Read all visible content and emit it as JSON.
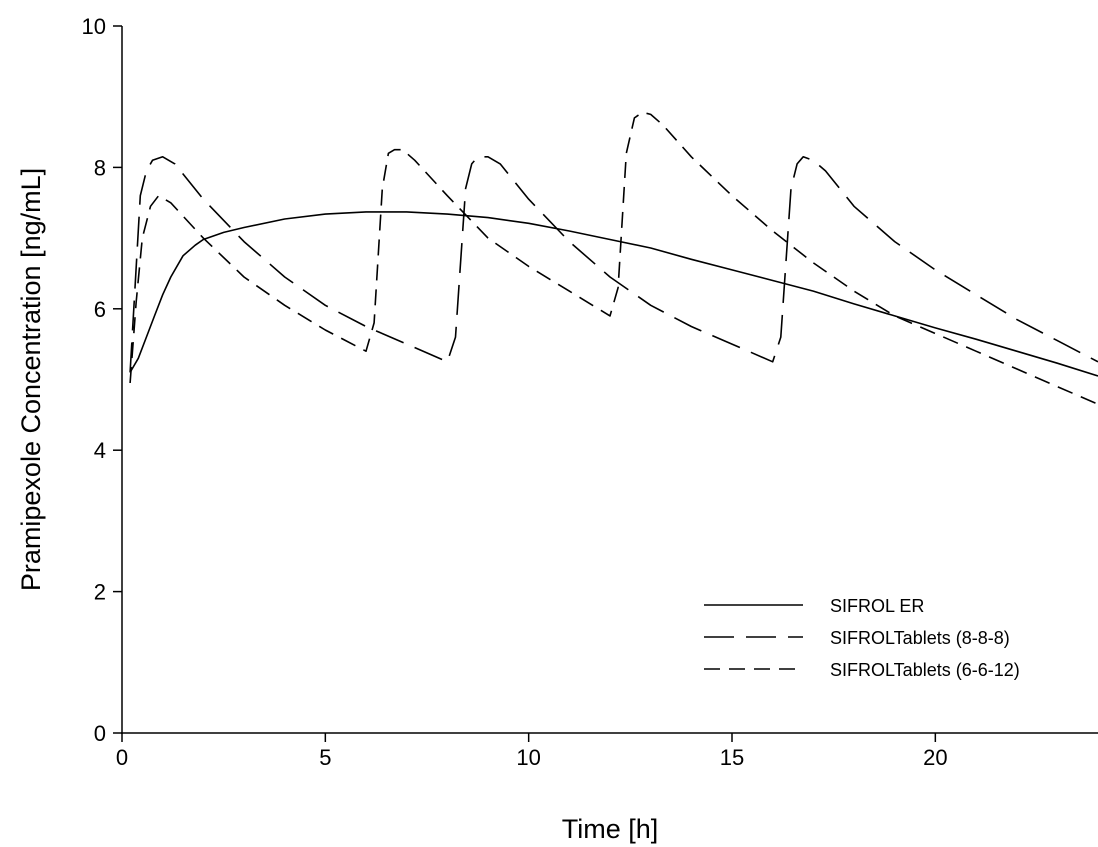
{
  "chart_data": {
    "type": "line",
    "title": "",
    "xlabel": "Time [h]",
    "ylabel": "Pramipexole Concentration [ng/mL]",
    "xlim": [
      0,
      24
    ],
    "ylim": [
      0,
      10
    ],
    "xticks": [
      0,
      5,
      10,
      15,
      20
    ],
    "yticks": [
      0,
      2,
      4,
      6,
      8,
      10
    ],
    "grid": false,
    "legend_position": "bottom-right",
    "series": [
      {
        "name": "SIFROL ER",
        "dash": "solid",
        "color": "#000000",
        "x": [
          0.2,
          0.4,
          0.6,
          0.8,
          1.0,
          1.2,
          1.5,
          1.8,
          2.0,
          2.5,
          3,
          4,
          5,
          6,
          7,
          8,
          9,
          10,
          11,
          12,
          13,
          14,
          15,
          16,
          17,
          18,
          19,
          20,
          21,
          22,
          23,
          24
        ],
        "y": [
          5.1,
          5.3,
          5.6,
          5.9,
          6.2,
          6.45,
          6.75,
          6.9,
          6.98,
          7.08,
          7.15,
          7.27,
          7.34,
          7.37,
          7.37,
          7.34,
          7.29,
          7.21,
          7.1,
          6.98,
          6.86,
          6.7,
          6.55,
          6.4,
          6.25,
          6.07,
          5.9,
          5.73,
          5.57,
          5.4,
          5.23,
          5.05
        ]
      },
      {
        "name": "SIFROLTablets (8-8-8)",
        "dash": "long",
        "color": "#000000",
        "x": [
          0.2,
          0.3,
          0.45,
          0.6,
          0.75,
          1.0,
          1.3,
          2,
          3,
          4,
          5,
          6,
          7,
          8,
          8.2,
          8.45,
          8.6,
          8.75,
          9.0,
          9.3,
          10,
          11,
          12,
          13,
          14,
          15,
          16,
          16.2,
          16.45,
          16.6,
          16.75,
          17.0,
          17.3,
          18,
          19,
          20,
          21,
          22,
          23,
          24
        ],
        "y": [
          5.1,
          6.1,
          7.6,
          7.95,
          8.1,
          8.15,
          8.05,
          7.55,
          6.95,
          6.45,
          6.05,
          5.75,
          5.5,
          5.25,
          5.6,
          7.7,
          8.05,
          8.15,
          8.15,
          8.05,
          7.55,
          6.95,
          6.45,
          6.05,
          5.75,
          5.5,
          5.25,
          5.6,
          7.7,
          8.05,
          8.15,
          8.1,
          7.95,
          7.45,
          6.95,
          6.55,
          6.2,
          5.85,
          5.55,
          5.25
        ]
      },
      {
        "name": "SIFROLTablets (6-6-12)",
        "dash": "short",
        "color": "#000000",
        "x": [
          0.2,
          0.35,
          0.5,
          0.7,
          0.9,
          1.2,
          2,
          3,
          4,
          5,
          6,
          6.2,
          6.4,
          6.55,
          6.7,
          6.9,
          7.2,
          8,
          9,
          10,
          11,
          12,
          12.2,
          12.4,
          12.6,
          12.8,
          13.0,
          13.3,
          14,
          15,
          16,
          17,
          18,
          19,
          20,
          21,
          22,
          23,
          24
        ],
        "y": [
          4.95,
          6.1,
          7.0,
          7.45,
          7.6,
          7.5,
          7.0,
          6.45,
          6.05,
          5.7,
          5.4,
          5.8,
          7.7,
          8.2,
          8.25,
          8.25,
          8.1,
          7.6,
          7.0,
          6.6,
          6.25,
          5.9,
          6.3,
          8.2,
          8.7,
          8.78,
          8.75,
          8.6,
          8.15,
          7.6,
          7.1,
          6.65,
          6.25,
          5.9,
          5.65,
          5.4,
          5.15,
          4.9,
          4.65
        ]
      }
    ]
  }
}
